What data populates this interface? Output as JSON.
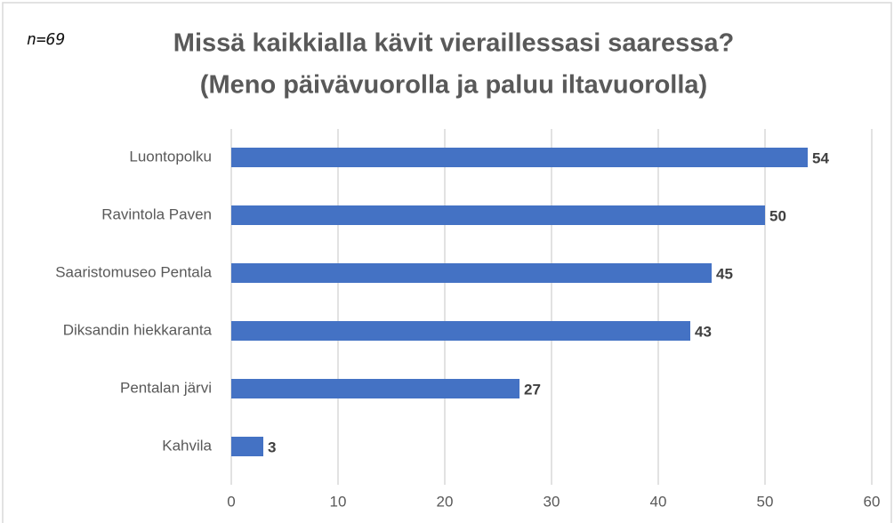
{
  "chart_data": {
    "type": "bar",
    "orientation": "horizontal",
    "title": "Missä kaikkialla kävit vieraillessasi saaressa?",
    "subtitle": "(Meno päivävuorolla ja paluu iltavuorolla)",
    "annotation": "n=69",
    "categories": [
      "Luontopolku",
      "Ravintola Paven",
      "Saaristomuseo Pentala",
      "Diksandin hiekkaranta",
      "Pentalan järvi",
      "Kahvila"
    ],
    "values": [
      54,
      50,
      45,
      43,
      27,
      3
    ],
    "color": "#4472c4",
    "xlim": [
      0,
      60
    ],
    "xticks": [
      0,
      10,
      20,
      30,
      40,
      50,
      60
    ],
    "grid": true
  }
}
